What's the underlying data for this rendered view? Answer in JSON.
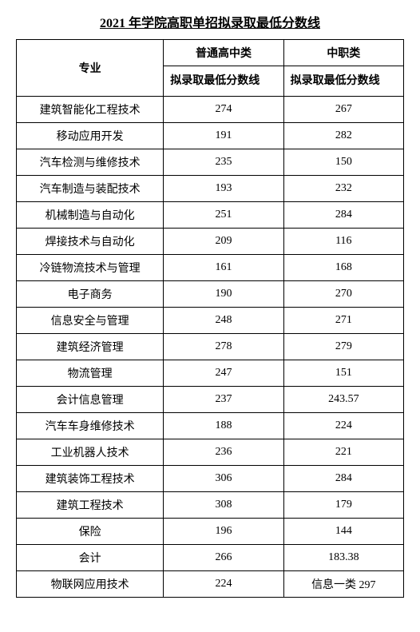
{
  "title": "2021 年学院高职单招拟录取最低分数线",
  "table": {
    "header": {
      "major_label": "专业",
      "category1_label": "普通高中类",
      "category2_label": "中职类",
      "sub1_label": "拟录取最低分数线",
      "sub2_label": "拟录取最低分数线"
    },
    "rows": [
      {
        "major": "建筑智能化工程技术",
        "score1": "274",
        "score2": "267"
      },
      {
        "major": "移动应用开发",
        "score1": "191",
        "score2": "282"
      },
      {
        "major": "汽车检测与维修技术",
        "score1": "235",
        "score2": "150"
      },
      {
        "major": "汽车制造与装配技术",
        "score1": "193",
        "score2": "232"
      },
      {
        "major": "机械制造与自动化",
        "score1": "251",
        "score2": "284"
      },
      {
        "major": "焊接技术与自动化",
        "score1": "209",
        "score2": "116"
      },
      {
        "major": "冷链物流技术与管理",
        "score1": "161",
        "score2": "168"
      },
      {
        "major": "电子商务",
        "score1": "190",
        "score2": "270"
      },
      {
        "major": "信息安全与管理",
        "score1": "248",
        "score2": "271"
      },
      {
        "major": "建筑经济管理",
        "score1": "278",
        "score2": "279"
      },
      {
        "major": "物流管理",
        "score1": "247",
        "score2": "151"
      },
      {
        "major": "会计信息管理",
        "score1": "237",
        "score2": "243.57"
      },
      {
        "major": "汽车车身维修技术",
        "score1": "188",
        "score2": "224"
      },
      {
        "major": "工业机器人技术",
        "score1": "236",
        "score2": "221"
      },
      {
        "major": "建筑装饰工程技术",
        "score1": "306",
        "score2": "284"
      },
      {
        "major": "建筑工程技术",
        "score1": "308",
        "score2": "179"
      },
      {
        "major": "保险",
        "score1": "196",
        "score2": "144"
      },
      {
        "major": "会计",
        "score1": "266",
        "score2": "183.38"
      },
      {
        "major": "物联网应用技术",
        "score1": "224",
        "score2": "信息一类 297"
      }
    ]
  },
  "style": {
    "background_color": "#ffffff",
    "border_color": "#000000",
    "text_color": "#000000",
    "title_fontsize": 16,
    "body_fontsize": 14,
    "font_family": "SimSun"
  }
}
